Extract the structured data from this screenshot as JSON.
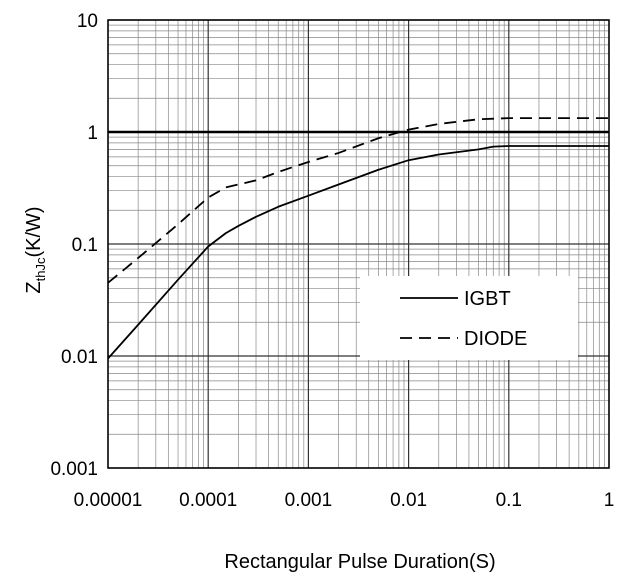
{
  "chart_data": {
    "type": "line",
    "xscale": "log",
    "yscale": "log",
    "xlim": [
      1e-05,
      1
    ],
    "ylim": [
      0.001,
      10
    ],
    "xlabel": "Rectangular Pulse Duration(S)",
    "ylabel": {
      "main": "Z",
      "sub": "thJc",
      "rest": "(K/W)"
    },
    "x_tick_labels": [
      "0.00001",
      "0.0001",
      "0.001",
      "0.01",
      "0.1",
      "1"
    ],
    "y_tick_labels": [
      "10",
      "1",
      "0.1",
      "0.01",
      "0.001"
    ],
    "grid": true,
    "legend_position": "lower-right",
    "series": [
      {
        "name": "IGBT",
        "style": "solid",
        "color": "#000000",
        "x": [
          1e-05,
          2e-05,
          5e-05,
          0.0001,
          0.00015,
          0.0002,
          0.0003,
          0.0005,
          0.001,
          0.002,
          0.005,
          0.01,
          0.02,
          0.05,
          0.07,
          0.1,
          0.2,
          0.5,
          1
        ],
        "y": [
          0.0095,
          0.019,
          0.048,
          0.095,
          0.125,
          0.145,
          0.175,
          0.215,
          0.27,
          0.34,
          0.46,
          0.56,
          0.63,
          0.7,
          0.74,
          0.75,
          0.75,
          0.75,
          0.75
        ]
      },
      {
        "name": "DIODE",
        "style": "dashed",
        "color": "#000000",
        "x": [
          1e-05,
          2e-05,
          5e-05,
          0.0001,
          0.00015,
          0.0002,
          0.0003,
          0.0005,
          0.001,
          0.002,
          0.005,
          0.01,
          0.02,
          0.05,
          0.1,
          0.2,
          0.5,
          1
        ],
        "y": [
          0.045,
          0.075,
          0.15,
          0.26,
          0.32,
          0.34,
          0.37,
          0.44,
          0.54,
          0.65,
          0.88,
          1.05,
          1.18,
          1.3,
          1.33,
          1.33,
          1.33,
          1.33
        ]
      }
    ],
    "reference_line": {
      "y": 1,
      "style": "solid-bold"
    }
  }
}
